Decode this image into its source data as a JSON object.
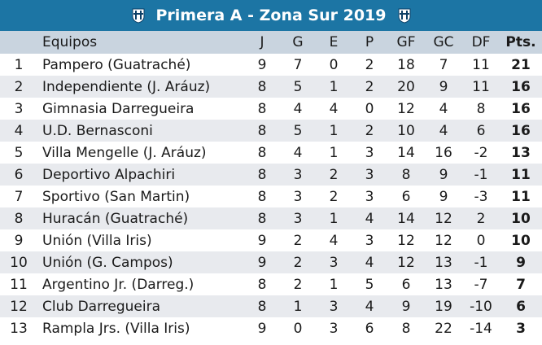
{
  "title": "Primera A - Zona Sur 2019",
  "colors": {
    "title_bg": "#1c75a4",
    "header_bg": "#c9d4df",
    "stripe": "#e8eaee"
  },
  "icons": {
    "left": "club-crest-icon",
    "right": "club-crest-icon"
  },
  "headers": [
    "",
    "Equipos",
    "J",
    "G",
    "E",
    "P",
    "GF",
    "GC",
    "DF",
    "Pts."
  ],
  "rows": [
    [
      "1",
      "Pampero (Guatraché)",
      "9",
      "7",
      "0",
      "2",
      "18",
      "7",
      "11",
      "21"
    ],
    [
      "2",
      "Independiente (J. Aráuz)",
      "8",
      "5",
      "1",
      "2",
      "20",
      "9",
      "11",
      "16"
    ],
    [
      "3",
      "Gimnasia Darregueira",
      "8",
      "4",
      "4",
      "0",
      "12",
      "4",
      "8",
      "16"
    ],
    [
      "4",
      "U.D. Bernasconi",
      "8",
      "5",
      "1",
      "2",
      "10",
      "4",
      "6",
      "16"
    ],
    [
      "5",
      "Villa Mengelle (J. Aráuz)",
      "8",
      "4",
      "1",
      "3",
      "14",
      "16",
      "-2",
      "13"
    ],
    [
      "6",
      "Deportivo Alpachiri",
      "8",
      "3",
      "2",
      "3",
      "8",
      "9",
      "-1",
      "11"
    ],
    [
      "7",
      "Sportivo (San Martin)",
      "8",
      "3",
      "2",
      "3",
      "6",
      "9",
      "-3",
      "11"
    ],
    [
      "8",
      "Huracán (Guatraché)",
      "8",
      "3",
      "1",
      "4",
      "14",
      "12",
      "2",
      "10"
    ],
    [
      "9",
      "Unión (Villa Iris)",
      "9",
      "2",
      "4",
      "3",
      "12",
      "12",
      "0",
      "10"
    ],
    [
      "10",
      "Unión (G. Campos)",
      "9",
      "2",
      "3",
      "4",
      "12",
      "13",
      "-1",
      "9"
    ],
    [
      "11",
      "Argentino Jr. (Darreg.)",
      "8",
      "2",
      "1",
      "5",
      "6",
      "13",
      "-7",
      "7"
    ],
    [
      "12",
      "Club Darregueira",
      "8",
      "1",
      "3",
      "4",
      "9",
      "19",
      "-10",
      "6"
    ],
    [
      "13",
      "Rampla Jrs. (Villa Iris)",
      "9",
      "0",
      "3",
      "6",
      "8",
      "22",
      "-14",
      "3"
    ]
  ]
}
